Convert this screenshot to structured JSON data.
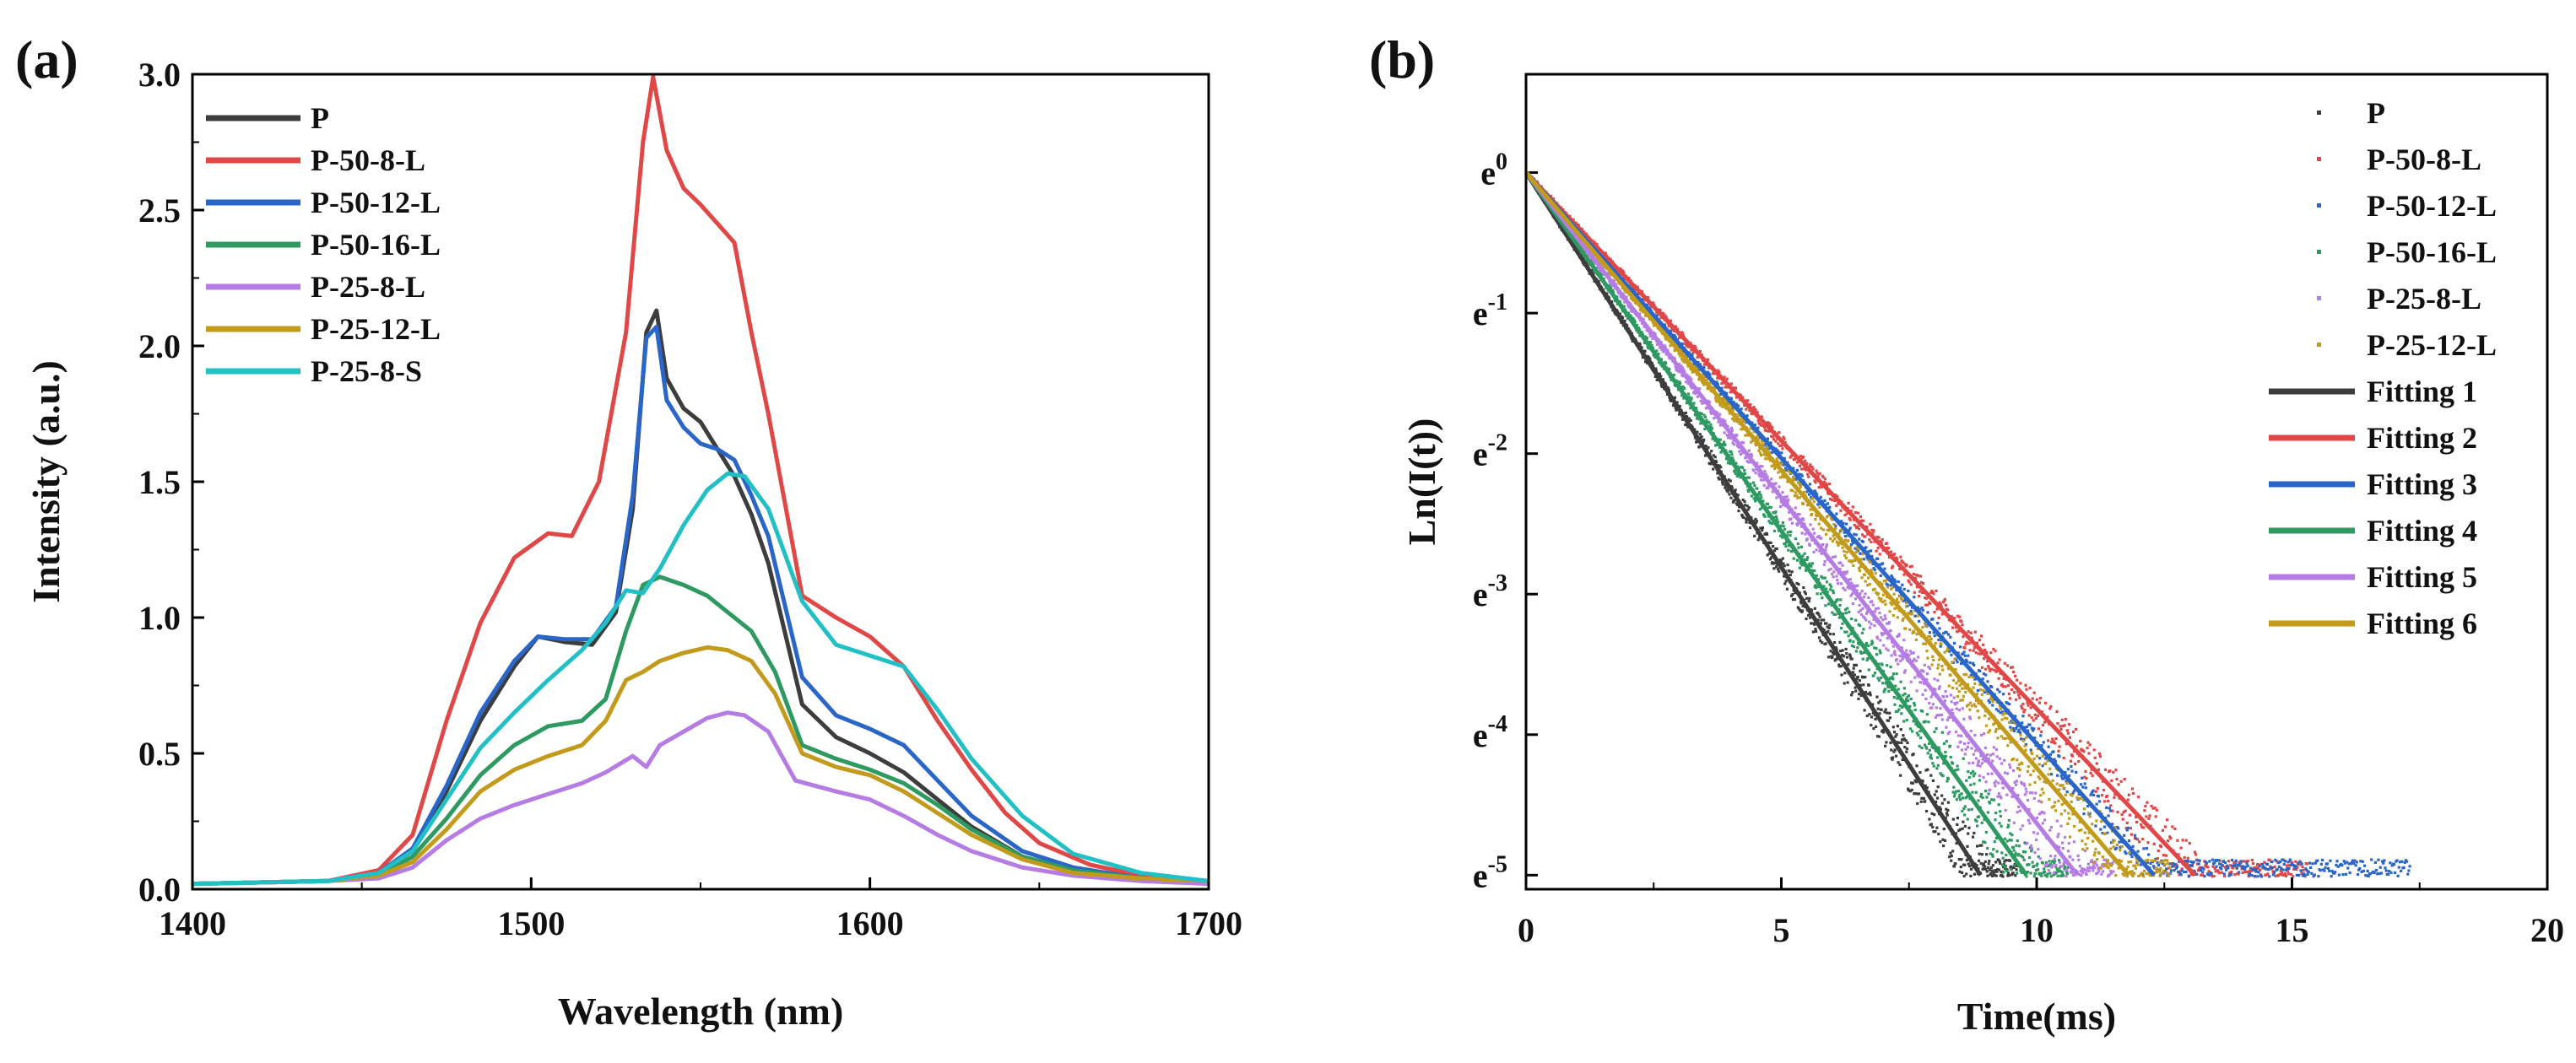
{
  "chart_data": [
    {
      "panel": "(a)",
      "type": "line",
      "title": "",
      "xlabel": "Wavelength (nm)",
      "ylabel": "Intensity (a.u.)",
      "xlim": [
        1400,
        1700
      ],
      "ylim": [
        0,
        3.0
      ],
      "xticks": [
        1400,
        1500,
        1600,
        1700
      ],
      "yticks": [
        "0.0",
        "0.5",
        "1.0",
        "1.5",
        "2.0",
        "2.5",
        "3.0"
      ],
      "legend_position": "top-left",
      "series": [
        {
          "name": "P",
          "color": "#3d3d3d",
          "x": [
            1400,
            1440,
            1455,
            1465,
            1475,
            1485,
            1495,
            1502,
            1510,
            1518,
            1525,
            1530,
            1534,
            1537,
            1540,
            1545,
            1550,
            1555,
            1560,
            1565,
            1570,
            1580,
            1590,
            1600,
            1610,
            1620,
            1630,
            1645,
            1660,
            1680,
            1700
          ],
          "y": [
            0.02,
            0.03,
            0.06,
            0.14,
            0.36,
            0.62,
            0.82,
            0.93,
            0.91,
            0.9,
            1.02,
            1.4,
            2.05,
            2.13,
            1.88,
            1.77,
            1.72,
            1.62,
            1.52,
            1.38,
            1.2,
            0.68,
            0.56,
            0.5,
            0.43,
            0.33,
            0.23,
            0.12,
            0.07,
            0.04,
            0.03
          ]
        },
        {
          "name": "P-50-8-L",
          "color": "#e04848",
          "x": [
            1400,
            1440,
            1455,
            1465,
            1475,
            1485,
            1495,
            1505,
            1512,
            1520,
            1528,
            1533,
            1536,
            1540,
            1545,
            1550,
            1555,
            1560,
            1565,
            1570,
            1580,
            1590,
            1600,
            1610,
            1620,
            1630,
            1640,
            1650,
            1665,
            1680,
            1700
          ],
          "y": [
            0.02,
            0.03,
            0.07,
            0.2,
            0.62,
            0.98,
            1.22,
            1.31,
            1.3,
            1.5,
            2.05,
            2.75,
            2.99,
            2.72,
            2.58,
            2.52,
            2.45,
            2.38,
            2.05,
            1.75,
            1.08,
            1.0,
            0.93,
            0.82,
            0.62,
            0.44,
            0.28,
            0.17,
            0.09,
            0.05,
            0.03
          ]
        },
        {
          "name": "P-50-12-L",
          "color": "#2a66c8",
          "x": [
            1400,
            1440,
            1455,
            1465,
            1475,
            1485,
            1495,
            1502,
            1510,
            1518,
            1525,
            1530,
            1534,
            1537,
            1540,
            1545,
            1550,
            1555,
            1560,
            1565,
            1570,
            1580,
            1590,
            1600,
            1610,
            1620,
            1630,
            1645,
            1660,
            1680,
            1700
          ],
          "y": [
            0.02,
            0.03,
            0.06,
            0.15,
            0.38,
            0.65,
            0.84,
            0.93,
            0.92,
            0.92,
            1.04,
            1.45,
            2.03,
            2.07,
            1.8,
            1.7,
            1.64,
            1.62,
            1.58,
            1.45,
            1.3,
            0.78,
            0.64,
            0.59,
            0.53,
            0.4,
            0.27,
            0.14,
            0.08,
            0.04,
            0.03
          ]
        },
        {
          "name": "P-50-16-L",
          "color": "#2e9a62",
          "x": [
            1400,
            1440,
            1455,
            1465,
            1475,
            1485,
            1495,
            1505,
            1515,
            1522,
            1528,
            1533,
            1538,
            1545,
            1552,
            1558,
            1565,
            1572,
            1580,
            1590,
            1600,
            1610,
            1620,
            1630,
            1645,
            1660,
            1680,
            1700
          ],
          "y": [
            0.02,
            0.03,
            0.05,
            0.12,
            0.26,
            0.42,
            0.53,
            0.6,
            0.62,
            0.7,
            0.95,
            1.12,
            1.15,
            1.12,
            1.08,
            1.02,
            0.95,
            0.8,
            0.53,
            0.48,
            0.44,
            0.39,
            0.31,
            0.22,
            0.12,
            0.07,
            0.04,
            0.03
          ]
        },
        {
          "name": "P-25-8-L",
          "color": "#b57de3",
          "x": [
            1400,
            1440,
            1455,
            1465,
            1475,
            1485,
            1495,
            1505,
            1515,
            1522,
            1530,
            1534,
            1538,
            1545,
            1552,
            1558,
            1563,
            1570,
            1578,
            1590,
            1600,
            1610,
            1620,
            1630,
            1645,
            1660,
            1680,
            1700
          ],
          "y": [
            0.02,
            0.03,
            0.04,
            0.08,
            0.18,
            0.26,
            0.31,
            0.35,
            0.39,
            0.43,
            0.49,
            0.45,
            0.53,
            0.58,
            0.63,
            0.65,
            0.64,
            0.58,
            0.4,
            0.36,
            0.33,
            0.27,
            0.2,
            0.14,
            0.08,
            0.05,
            0.03,
            0.02
          ]
        },
        {
          "name": "P-25-12-L",
          "color": "#c29a1c",
          "x": [
            1400,
            1440,
            1455,
            1465,
            1475,
            1485,
            1495,
            1505,
            1515,
            1522,
            1528,
            1533,
            1538,
            1545,
            1552,
            1558,
            1565,
            1572,
            1580,
            1590,
            1600,
            1610,
            1620,
            1630,
            1645,
            1660,
            1680,
            1700
          ],
          "y": [
            0.02,
            0.03,
            0.05,
            0.1,
            0.22,
            0.36,
            0.44,
            0.49,
            0.53,
            0.62,
            0.77,
            0.8,
            0.84,
            0.87,
            0.89,
            0.88,
            0.84,
            0.72,
            0.5,
            0.45,
            0.42,
            0.36,
            0.28,
            0.2,
            0.11,
            0.06,
            0.04,
            0.03
          ]
        },
        {
          "name": "P-25-8-S",
          "color": "#22c0c4",
          "x": [
            1400,
            1440,
            1455,
            1465,
            1475,
            1485,
            1495,
            1505,
            1515,
            1522,
            1528,
            1533,
            1538,
            1545,
            1552,
            1558,
            1563,
            1570,
            1580,
            1590,
            1600,
            1610,
            1620,
            1630,
            1645,
            1660,
            1680,
            1700
          ],
          "y": [
            0.02,
            0.03,
            0.06,
            0.14,
            0.33,
            0.52,
            0.65,
            0.77,
            0.88,
            0.98,
            1.1,
            1.09,
            1.18,
            1.34,
            1.47,
            1.53,
            1.52,
            1.4,
            1.06,
            0.9,
            0.86,
            0.82,
            0.66,
            0.48,
            0.27,
            0.13,
            0.06,
            0.03
          ]
        }
      ]
    },
    {
      "panel": "(b)",
      "type": "scatter",
      "title": "",
      "xlabel": "Time(ms)",
      "ylabel": "Ln(I(t))",
      "xlim": [
        0,
        20
      ],
      "ylim": [
        -5.1,
        0.7
      ],
      "xticks": [
        0,
        5,
        10,
        15,
        20
      ],
      "yticks": [
        {
          "value": 0,
          "base": "e",
          "exp": "0"
        },
        {
          "value": -1,
          "base": "e",
          "exp": "-1"
        },
        {
          "value": -2,
          "base": "e",
          "exp": "-2"
        },
        {
          "value": -3,
          "base": "e",
          "exp": "-3"
        },
        {
          "value": -4,
          "base": "e",
          "exp": "-4"
        },
        {
          "value": -5,
          "base": "e",
          "exp": "-5"
        }
      ],
      "legend_position": "top-right",
      "scatter_series": [
        {
          "name": "P",
          "color": "#3d3d3d",
          "decay_slope": -0.563,
          "x_end": 9.6,
          "y_floor": -5.0
        },
        {
          "name": "P-50-8-L",
          "color": "#e04848",
          "decay_slope": -0.382,
          "x_end": 15.3,
          "y_floor": -5.0
        },
        {
          "name": "P-50-12-L",
          "color": "#2a66c8",
          "decay_slope": -0.407,
          "x_end": 17.3,
          "y_floor": -5.0
        },
        {
          "name": "P-50-16-L",
          "color": "#2e9a62",
          "decay_slope": -0.51,
          "x_end": 10.6,
          "y_floor": -5.0
        },
        {
          "name": "P-25-8-L",
          "color": "#b57de3",
          "decay_slope": -0.465,
          "x_end": 11.5,
          "y_floor": -5.0
        },
        {
          "name": "P-25-12-L",
          "color": "#c29a1c",
          "decay_slope": -0.425,
          "x_end": 12.6,
          "y_floor": -5.0
        }
      ],
      "fit_series": [
        {
          "name": "Fitting 1",
          "color": "#3d3d3d",
          "x": [
            0,
            8.9
          ],
          "y": [
            0,
            -5.0
          ]
        },
        {
          "name": "Fitting 2",
          "color": "#e04848",
          "x": [
            0,
            13.1
          ],
          "y": [
            0,
            -5.0
          ]
        },
        {
          "name": "Fitting 3",
          "color": "#2a66c8",
          "x": [
            0,
            12.3
          ],
          "y": [
            0,
            -5.0
          ]
        },
        {
          "name": "Fitting 4",
          "color": "#2e9a62",
          "x": [
            0,
            9.8
          ],
          "y": [
            0,
            -5.0
          ]
        },
        {
          "name": "Fitting 5",
          "color": "#b57de3",
          "x": [
            0,
            10.8
          ],
          "y": [
            0,
            -5.0
          ]
        },
        {
          "name": "Fitting 6",
          "color": "#c29a1c",
          "x": [
            0,
            11.8
          ],
          "y": [
            0,
            -5.0
          ]
        }
      ]
    }
  ]
}
